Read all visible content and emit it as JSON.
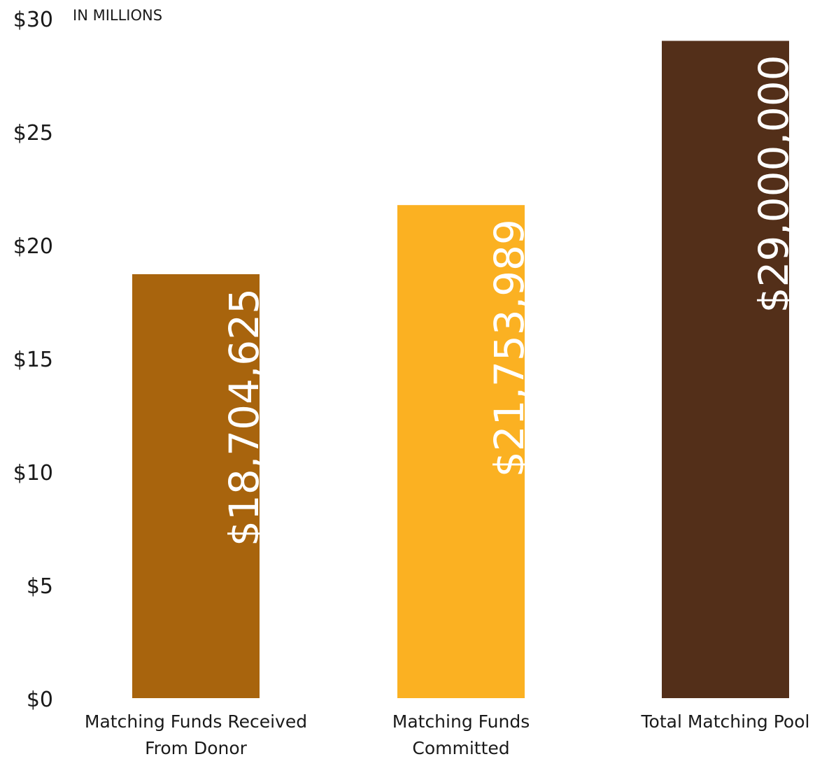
{
  "chart_data": {
    "type": "bar",
    "unit_label": "IN MILLIONS",
    "categories": [
      [
        "Matching Funds Received",
        "From Donor"
      ],
      [
        "Matching Funds",
        "Committed"
      ],
      [
        "Total Matching Pool"
      ]
    ],
    "values": [
      18.704625,
      21.753989,
      29.0
    ],
    "data_labels": [
      "$18,704,625",
      "$21,753,989",
      "$29,000,000"
    ],
    "colors": [
      "#A8640D",
      "#FBB122",
      "#532F19"
    ],
    "y_ticks": [
      "$0",
      "$5",
      "$10",
      "$15",
      "$20",
      "$25",
      "$30"
    ],
    "ylim": [
      0,
      30
    ],
    "grid": false,
    "legend": "none"
  }
}
